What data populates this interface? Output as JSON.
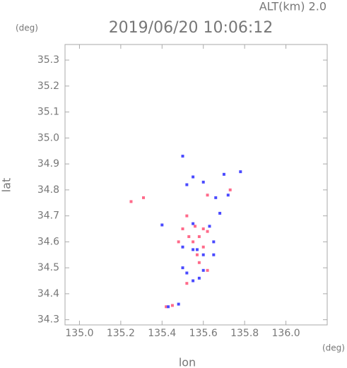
{
  "chart_data": {
    "type": "scatter",
    "title": "2019/06/20 10:06:12",
    "subtitle": "ALT(km) 2.0",
    "xlabel": "lon",
    "ylabel": "lat",
    "x_unit": "(deg)",
    "y_unit": "(deg)",
    "xlim": [
      134.93,
      136.2
    ],
    "ylim": [
      34.28,
      35.36
    ],
    "xticks": [
      {
        "value": 135,
        "label": "135.0"
      },
      135.2,
      135.4,
      135.6,
      135.8,
      {
        "value": 136,
        "label": "136.0"
      }
    ],
    "yticks": [
      34.3,
      34.4,
      34.5,
      34.6,
      34.7,
      34.8,
      34.9,
      {
        "value": 35,
        "label": "35.0"
      },
      35.1,
      35.2,
      35.3
    ],
    "grid": false,
    "series": [
      {
        "color": "#ff6a8a",
        "x": [
          135.25,
          135.31,
          135.52,
          135.52,
          135.5,
          135.58,
          135.6,
          135.55,
          135.62,
          135.62,
          135.73,
          135.42,
          135.45,
          135.6,
          135.57,
          135.53,
          135.48,
          135.62,
          135.56,
          135.58
        ],
        "y": [
          34.755,
          34.77,
          34.44,
          34.7,
          34.65,
          34.62,
          34.58,
          34.6,
          34.49,
          34.78,
          34.8,
          34.35,
          34.355,
          34.65,
          34.55,
          34.62,
          34.6,
          34.64,
          34.66,
          34.52
        ]
      },
      {
        "color": "#4a4aff",
        "x": [
          135.5,
          135.55,
          135.52,
          135.6,
          135.7,
          135.72,
          135.78,
          135.66,
          135.55,
          135.57,
          135.65,
          135.63,
          135.5,
          135.52,
          135.58,
          135.55,
          135.43,
          135.48,
          135.4,
          135.68,
          135.6,
          135.5,
          135.65,
          135.6,
          135.55
        ],
        "y": [
          34.93,
          34.85,
          34.82,
          34.83,
          34.86,
          34.78,
          34.87,
          34.77,
          34.57,
          34.57,
          34.6,
          34.66,
          34.5,
          34.48,
          34.46,
          34.45,
          34.35,
          34.36,
          34.665,
          34.71,
          34.55,
          34.58,
          34.55,
          34.49,
          34.67
        ]
      }
    ]
  }
}
